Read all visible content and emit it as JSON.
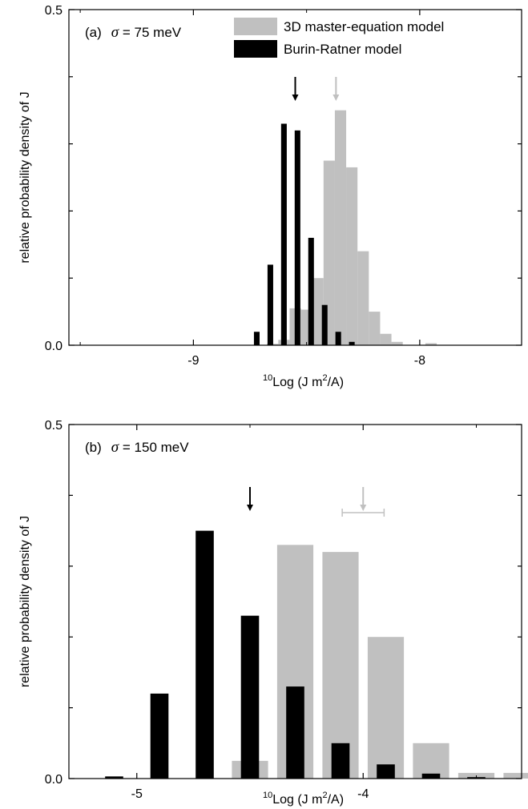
{
  "colors": {
    "master": "#c0c0c0",
    "burin": "#000000",
    "axis": "#000000"
  },
  "chart_data": [
    {
      "type": "bar",
      "panel_label": "(a)",
      "sigma_symbol": "σ",
      "sigma_value": "= 75 meV",
      "xlabel_sup": "10",
      "xlabel_main": "Log (J m",
      "xlabel_sup2": "2",
      "xlabel_tail": "/A)",
      "ylabel": "relative probability density of J",
      "xlim": [
        -9.55,
        -7.55
      ],
      "ylim": [
        0,
        0.5
      ],
      "xticks": [
        -9,
        -8
      ],
      "xtick_labels": [
        "-9",
        "-8"
      ],
      "yticks": [
        0.0,
        0.5
      ],
      "ytick_labels": [
        "0.0",
        "0.5"
      ],
      "legend": [
        "3D master-equation model",
        "Burin-Ratner model"
      ],
      "series": [
        {
          "name": "3D master-equation model",
          "bin_width": 0.05,
          "bins": [
            [
              -8.65,
              0.002
            ],
            [
              -8.6,
              0.008
            ],
            [
              -8.55,
              0.055
            ],
            [
              -8.5,
              0.053
            ],
            [
              -8.45,
              0.1
            ],
            [
              -8.4,
              0.275
            ],
            [
              -8.35,
              0.35
            ],
            [
              -8.3,
              0.265
            ],
            [
              -8.25,
              0.14
            ],
            [
              -8.2,
              0.05
            ],
            [
              -8.15,
              0.017
            ],
            [
              -8.1,
              0.005
            ],
            [
              -7.95,
              0.003
            ]
          ]
        },
        {
          "name": "Burin-Ratner model",
          "bin_width": 0.025,
          "bins": [
            [
              -8.72,
              0.02
            ],
            [
              -8.66,
              0.12
            ],
            [
              -8.6,
              0.33
            ],
            [
              -8.54,
              0.32
            ],
            [
              -8.48,
              0.16
            ],
            [
              -8.42,
              0.06
            ],
            [
              -8.36,
              0.02
            ],
            [
              -8.3,
              0.005
            ]
          ]
        }
      ],
      "arrows": [
        {
          "series": "Burin-Ratner model",
          "x": -8.55
        },
        {
          "series": "3D master-equation model",
          "x": -8.37
        }
      ]
    },
    {
      "type": "bar",
      "panel_label": "(b)",
      "sigma_symbol": "σ",
      "sigma_value": "= 150 meV",
      "xlabel_sup": "10",
      "xlabel_main": "Log (J m",
      "xlabel_sup2": "2",
      "xlabel_tail": "/A)",
      "ylabel": "relative probability density of J",
      "xlim": [
        -5.3,
        -3.3
      ],
      "ylim": [
        0,
        0.5
      ],
      "xticks": [
        -5,
        -4
      ],
      "xtick_labels": [
        "-5",
        "-4"
      ],
      "yticks": [
        0.0,
        0.5
      ],
      "ytick_labels": [
        "0.0",
        "0.5"
      ],
      "series": [
        {
          "name": "3D master-equation model",
          "bin_width": 0.16,
          "bins": [
            [
              -4.5,
              0.025
            ],
            [
              -4.3,
              0.33
            ],
            [
              -4.1,
              0.32
            ],
            [
              -3.9,
              0.2
            ],
            [
              -3.7,
              0.05
            ],
            [
              -3.5,
              0.008
            ],
            [
              -3.3,
              0.008
            ]
          ]
        },
        {
          "name": "Burin-Ratner model",
          "bin_width": 0.08,
          "bins": [
            [
              -5.1,
              0.003
            ],
            [
              -4.9,
              0.12
            ],
            [
              -4.7,
              0.35
            ],
            [
              -4.5,
              0.23
            ],
            [
              -4.3,
              0.13
            ],
            [
              -4.1,
              0.05
            ],
            [
              -3.9,
              0.02
            ],
            [
              -3.7,
              0.007
            ],
            [
              -3.5,
              0.002
            ]
          ]
        }
      ],
      "arrows": [
        {
          "series": "Burin-Ratner model",
          "x": -4.5,
          "xerr": 0
        },
        {
          "series": "3D master-equation model",
          "x": -4.0,
          "xerr": 0.05
        }
      ]
    }
  ]
}
